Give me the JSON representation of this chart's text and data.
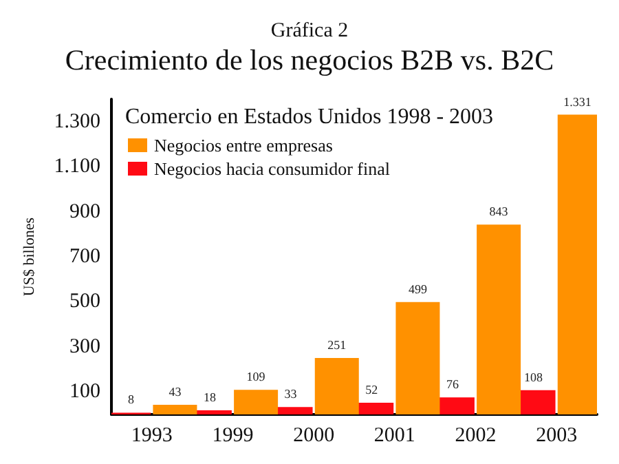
{
  "chart_data": {
    "type": "bar",
    "title": "Gráfica 2",
    "subtitle": "Crecimiento de los negocios B2B vs. B2C",
    "annotations": [
      "Comercio en Estados Unidos 1998 - 2003"
    ],
    "ylabel": "US$ billones",
    "categories": [
      "1993",
      "1999",
      "2000",
      "2001",
      "2002",
      "2003"
    ],
    "series": [
      {
        "name": "Negocios hacia consumidor final",
        "color": "#ff0a14",
        "values": [
          8,
          18,
          33,
          52,
          76,
          108
        ],
        "value_labels": [
          "8",
          "18",
          "33",
          "52",
          "76",
          "108"
        ]
      },
      {
        "name": "Negocios entre empresas",
        "color": "#ff9100",
        "values": [
          43,
          109,
          251,
          499,
          843,
          1331
        ],
        "value_labels": [
          "43",
          "109",
          "251",
          "499",
          "843",
          "1.331"
        ]
      }
    ],
    "ylim": [
      0,
      1400
    ],
    "yticks": [
      100,
      300,
      500,
      700,
      900,
      {
        "value": 1100,
        "label": "1.100"
      },
      {
        "value": 1300,
        "label": "1.300"
      }
    ],
    "grid": false,
    "legend": "top left"
  }
}
